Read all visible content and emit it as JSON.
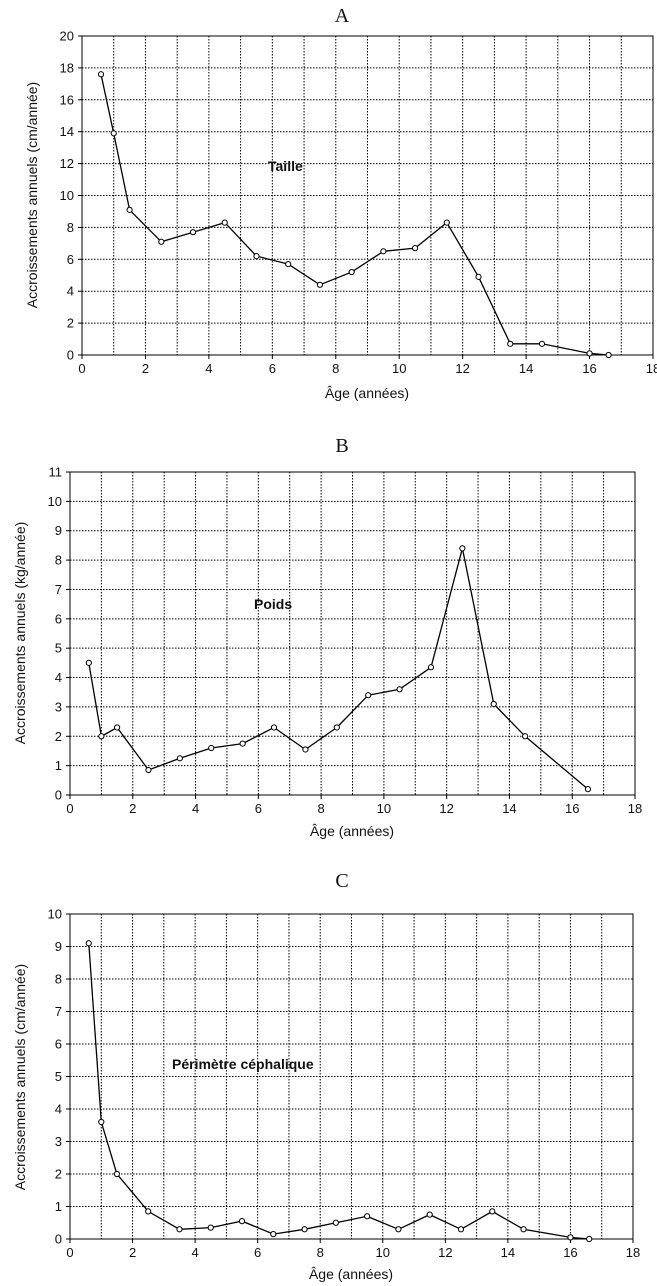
{
  "chart_data": [
    {
      "panel": "A",
      "type": "line",
      "xlabel": "Âge (années)",
      "ylabel": "Accroissements annuels (cm/année)",
      "annotation": "Taille",
      "xlim": [
        0,
        18
      ],
      "ylim": [
        0,
        20
      ],
      "xticks": [
        0,
        2,
        4,
        6,
        8,
        10,
        12,
        14,
        16,
        18
      ],
      "yticks": [
        0,
        2,
        4,
        6,
        8,
        10,
        12,
        14,
        16,
        18,
        20
      ],
      "grid": true,
      "x": [
        0.6,
        1.0,
        1.5,
        2.5,
        3.5,
        4.5,
        5.5,
        6.5,
        7.5,
        8.5,
        9.5,
        10.5,
        11.5,
        12.5,
        13.5,
        14.5,
        16.0,
        16.6
      ],
      "y": [
        17.6,
        13.9,
        9.1,
        7.1,
        7.7,
        8.3,
        6.2,
        5.7,
        4.4,
        5.2,
        6.5,
        6.7,
        8.3,
        4.9,
        0.7,
        0.7,
        0.1,
        0.0
      ]
    },
    {
      "panel": "B",
      "type": "line",
      "xlabel": "Âge (années)",
      "ylabel": "Accroissements annuels (kg/année)",
      "annotation": "Poids",
      "xlim": [
        0,
        18
      ],
      "ylim": [
        0,
        11
      ],
      "xticks": [
        0,
        2,
        4,
        6,
        8,
        10,
        12,
        14,
        16,
        18
      ],
      "yticks": [
        0,
        1,
        2,
        3,
        4,
        5,
        6,
        7,
        8,
        9,
        10,
        11
      ],
      "grid": true,
      "x": [
        0.6,
        1.0,
        1.5,
        2.5,
        3.5,
        4.5,
        5.5,
        6.5,
        7.5,
        8.5,
        9.5,
        10.5,
        11.5,
        12.5,
        13.5,
        14.5,
        16.5
      ],
      "y": [
        4.5,
        2.0,
        2.3,
        0.85,
        1.25,
        1.6,
        1.75,
        2.3,
        1.55,
        2.3,
        3.4,
        3.6,
        4.35,
        8.4,
        3.1,
        2.0,
        0.2
      ]
    },
    {
      "panel": "C",
      "type": "line",
      "xlabel": "Âge (années)",
      "ylabel": "Accroissements annuels (cm/année)",
      "annotation": "Périmètre céphalique",
      "xlim": [
        0,
        18
      ],
      "ylim": [
        0,
        10
      ],
      "xticks": [
        0,
        2,
        4,
        6,
        8,
        10,
        12,
        14,
        16,
        18
      ],
      "yticks": [
        0,
        1,
        2,
        3,
        4,
        5,
        6,
        7,
        8,
        9,
        10
      ],
      "grid": true,
      "x": [
        0.6,
        1.0,
        1.5,
        2.5,
        3.5,
        4.5,
        5.5,
        6.5,
        7.5,
        8.5,
        9.5,
        10.5,
        11.5,
        12.5,
        13.5,
        14.5,
        16.0,
        16.6
      ],
      "y": [
        9.1,
        3.6,
        2.0,
        0.85,
        0.3,
        0.35,
        0.55,
        0.15,
        0.3,
        0.5,
        0.7,
        0.3,
        0.75,
        0.3,
        0.85,
        0.3,
        0.05,
        0.0
      ]
    }
  ]
}
